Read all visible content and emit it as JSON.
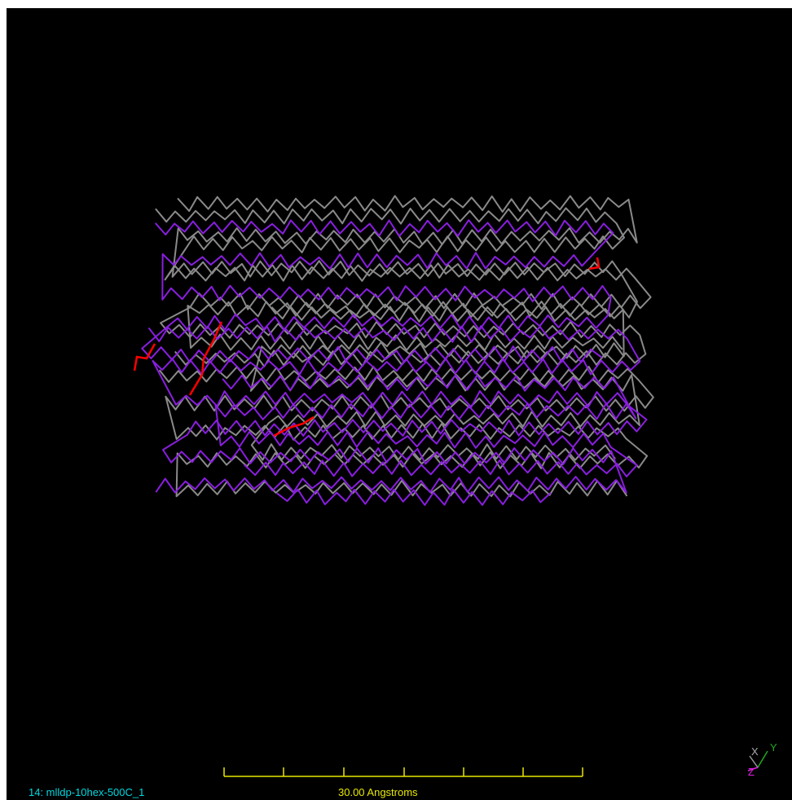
{
  "status": {
    "molecule": "14: mlldp-10hex-500C_1"
  },
  "scale_bar": {
    "label": "30.00 Angstroms"
  },
  "axes": {
    "x": "X",
    "y": "Y",
    "z": "Z"
  }
}
